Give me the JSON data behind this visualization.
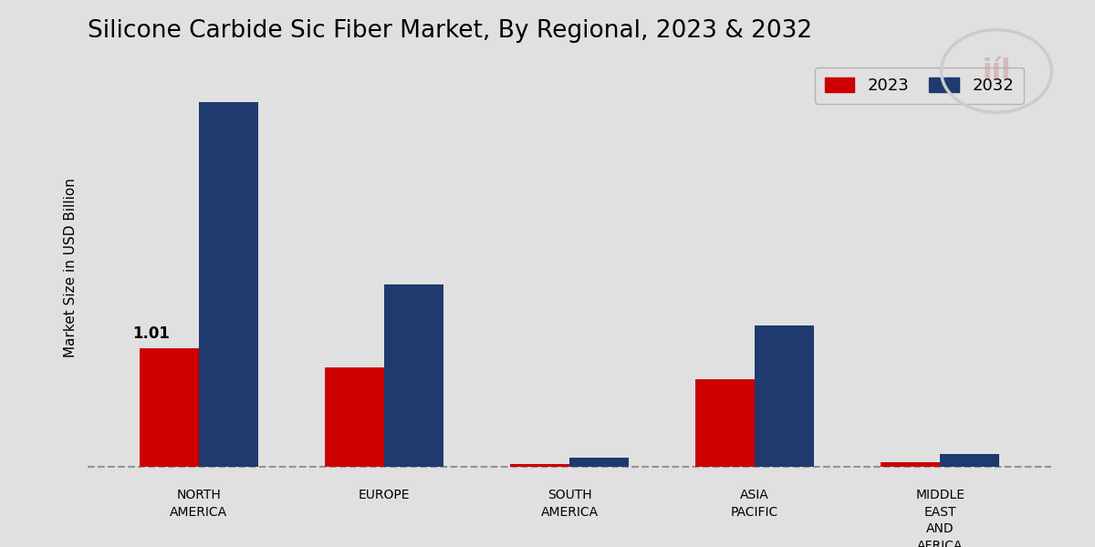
{
  "title": "Silicone Carbide Sic Fiber Market, By Regional, 2023 & 2032",
  "ylabel": "Market Size in USD Billion",
  "categories": [
    "NORTH\nAMERICA",
    "EUROPE",
    "SOUTH\nAMERICA",
    "ASIA\nPACIFIC",
    "MIDDLE\nEAST\nAND\nAFRICA"
  ],
  "values_2023": [
    1.01,
    0.85,
    0.025,
    0.75,
    0.04
  ],
  "values_2032": [
    3.1,
    1.55,
    0.08,
    1.2,
    0.11
  ],
  "color_2023": "#cc0000",
  "color_2032": "#1e3a6e",
  "bar_annotation": "1.01",
  "bar_annotation_index": 0,
  "background_color": "#e0e0e0",
  "legend_labels": [
    "2023",
    "2032"
  ],
  "bar_width": 0.32,
  "ylim": [
    -0.12,
    3.5
  ],
  "title_fontsize": 19,
  "label_fontsize": 11,
  "tick_fontsize": 10,
  "red_bar_color": "#cc0000",
  "red_bar_height": 0.018
}
